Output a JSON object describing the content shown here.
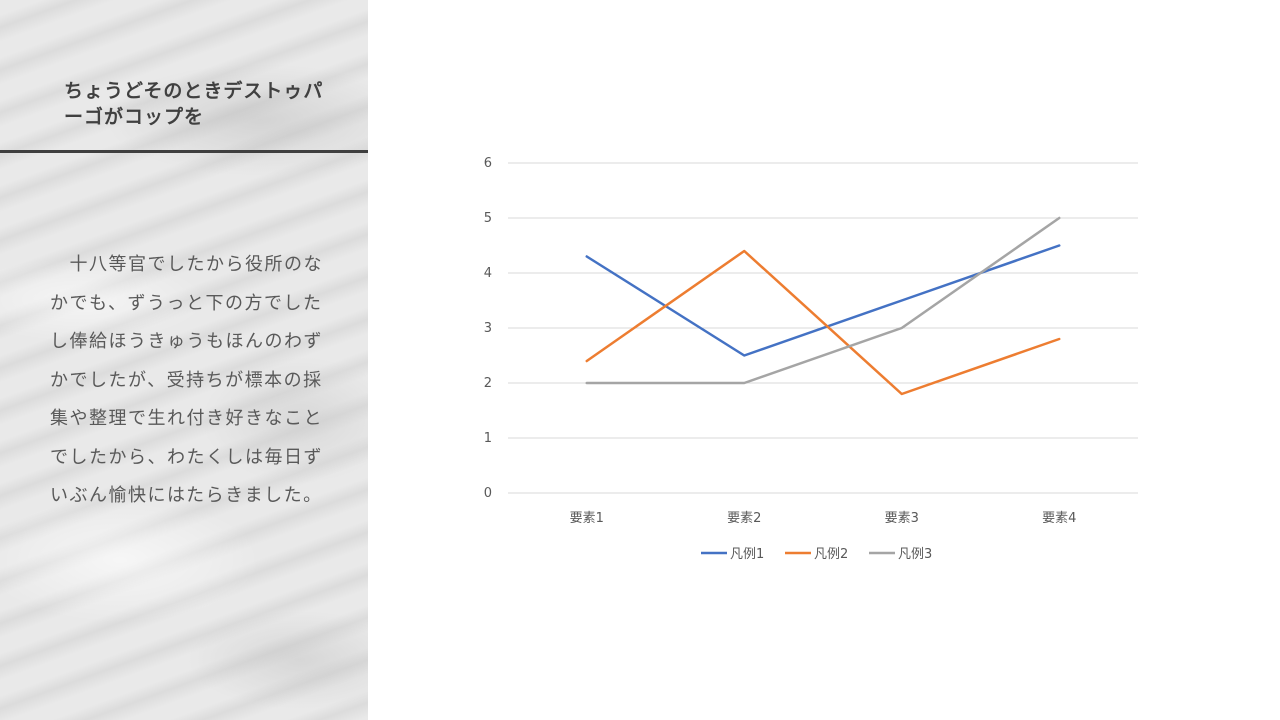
{
  "slide": {
    "title": "ちょうどそのときデストゥパーゴがコップを",
    "body": "　十八等官でしたから役所のなかでも、ずうっと下の方でしたし俸給ほうきゅうもほんのわずかでしたが、受持ちが標本の採集や整理で生れ付き好きなことでしたから、わたくしは毎日ずいぶん愉快にはたらきました。"
  },
  "chart_data": {
    "type": "line",
    "title": "",
    "xlabel": "",
    "ylabel": "",
    "categories": [
      "要素1",
      "要素2",
      "要素3",
      "要素4"
    ],
    "ylim": [
      0,
      6
    ],
    "yticks": [
      "0",
      "1",
      "2",
      "3",
      "4",
      "5",
      "6"
    ],
    "grid": true,
    "legend_position": "bottom",
    "series": [
      {
        "name": "凡例1",
        "color": "#4472c4",
        "values": [
          4.3,
          2.5,
          3.5,
          4.5
        ]
      },
      {
        "name": "凡例2",
        "color": "#ed7d31",
        "values": [
          2.4,
          4.4,
          1.8,
          2.8
        ]
      },
      {
        "name": "凡例3",
        "color": "#a5a5a5",
        "values": [
          2.0,
          2.0,
          3.0,
          5.0
        ]
      }
    ]
  }
}
